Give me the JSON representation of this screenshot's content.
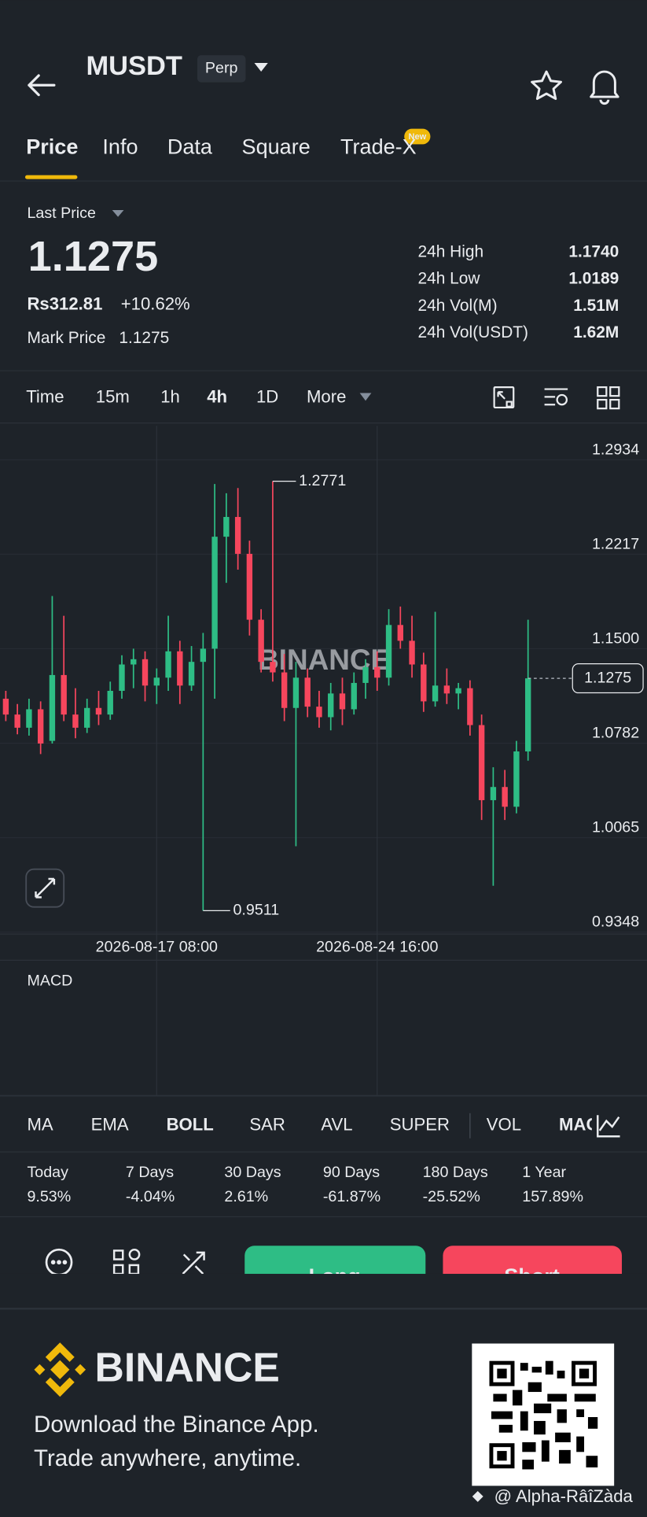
{
  "header": {
    "symbol": "MUSDT",
    "badge": "Perp"
  },
  "tabs": [
    "Price",
    "Info",
    "Data",
    "Square",
    "Trade-X"
  ],
  "tab_badge": "New",
  "price": {
    "label": "Last Price",
    "last": "1.1275",
    "fiat": "Rs312.81",
    "change": "+10.62%",
    "mark_label": "Mark Price",
    "mark_value": "1.1275"
  },
  "stats": [
    {
      "label": "24h High",
      "value": "1.1740"
    },
    {
      "label": "24h Low",
      "value": "1.0189"
    },
    {
      "label": "24h Vol(M)",
      "value": "1.51M"
    },
    {
      "label": "24h Vol(USDT)",
      "value": "1.62M"
    }
  ],
  "timeframes": [
    "Time",
    "15m",
    "1h",
    "4h",
    "1D",
    "More"
  ],
  "chart_data": {
    "type": "candlestick",
    "watermark": "BINANCE",
    "categories": [
      null,
      null,
      null,
      null,
      null,
      null,
      null,
      null,
      null,
      null,
      null,
      null,
      null,
      "2026-08-17 08:00",
      null,
      null,
      null,
      null,
      null,
      null,
      null,
      null,
      null,
      null,
      null,
      null,
      null,
      null,
      null,
      null,
      null,
      null,
      "2026-08-24 16:00",
      null,
      null,
      null,
      null,
      null,
      null,
      null,
      null,
      null,
      null,
      null,
      null,
      null
    ],
    "open": [
      1.112,
      1.1,
      1.09,
      1.104,
      1.08,
      1.13,
      1.1,
      1.09,
      1.105,
      1.1,
      1.118,
      1.138,
      1.142,
      1.122,
      1.128,
      1.148,
      1.122,
      1.14,
      1.15,
      1.235,
      1.25,
      1.222,
      1.172,
      1.14,
      1.132,
      1.105,
      1.128,
      1.106,
      1.098,
      1.116,
      1.104,
      1.124,
      1.136,
      1.128,
      1.168,
      1.156,
      1.138,
      1.11,
      1.122,
      1.116,
      1.12,
      1.092,
      1.035,
      1.045,
      1.03,
      1.072
    ],
    "high": [
      1.118,
      1.108,
      1.112,
      1.11,
      1.19,
      1.175,
      1.12,
      1.112,
      1.118,
      1.125,
      1.145,
      1.15,
      1.148,
      1.135,
      1.175,
      1.156,
      1.152,
      1.162,
      1.275,
      1.268,
      1.272,
      1.232,
      1.18,
      1.2771,
      1.146,
      1.14,
      1.135,
      1.118,
      1.124,
      1.128,
      1.132,
      1.142,
      1.148,
      1.18,
      1.182,
      1.175,
      1.147,
      1.178,
      1.135,
      1.124,
      1.126,
      1.1,
      1.06,
      1.058,
      1.08,
      1.172
    ],
    "low": [
      1.095,
      1.085,
      1.084,
      1.07,
      1.078,
      1.095,
      1.082,
      1.086,
      1.092,
      1.096,
      1.112,
      1.12,
      1.11,
      1.108,
      1.118,
      1.108,
      1.118,
      0.9511,
      1.112,
      1.2,
      1.21,
      1.16,
      1.132,
      1.125,
      1.095,
      1.0,
      1.098,
      1.09,
      1.088,
      1.092,
      1.1,
      1.112,
      1.118,
      1.122,
      1.15,
      1.128,
      1.102,
      1.106,
      1.108,
      1.104,
      1.084,
      1.02,
      0.97,
      1.02,
      1.025,
      1.065
    ],
    "close": [
      1.1,
      1.09,
      1.104,
      1.078,
      1.13,
      1.1,
      1.09,
      1.105,
      1.1,
      1.118,
      1.138,
      1.142,
      1.122,
      1.128,
      1.148,
      1.122,
      1.14,
      1.15,
      1.235,
      1.25,
      1.222,
      1.172,
      1.14,
      1.132,
      1.105,
      1.128,
      1.106,
      1.098,
      1.116,
      1.104,
      1.124,
      1.136,
      1.128,
      1.168,
      1.156,
      1.138,
      1.11,
      1.122,
      1.116,
      1.12,
      1.092,
      1.035,
      1.045,
      1.03,
      1.072,
      1.1275
    ],
    "up_color": "#2ebd85",
    "down_color": "#f6465d",
    "ylim": [
      0.9348,
      1.2934
    ],
    "yticks": [
      1.2934,
      1.2217,
      {
        "value": 1.15,
        "label": "1.1500"
      },
      1.0782,
      1.0065,
      0.9348
    ],
    "high_label": 1.2771,
    "low_label": 0.9511,
    "last_price": 1.1275,
    "grid": true
  },
  "indicator_label": "MACD",
  "indicators": [
    "MA",
    "EMA",
    "BOLL",
    "SAR",
    "AVL",
    "SUPER",
    "VOL",
    "MACD"
  ],
  "returns": [
    {
      "period": "Today",
      "value": "9.53%"
    },
    {
      "period": "7 Days",
      "value": "-4.04%"
    },
    {
      "period": "30 Days",
      "value": "2.61%"
    },
    {
      "period": "90 Days",
      "value": "-61.87%"
    },
    {
      "period": "180 Days",
      "value": "-25.52%"
    },
    {
      "period": "1 Year",
      "value": "157.89%"
    }
  ],
  "actions": {
    "long": "Long",
    "short": "Short"
  },
  "footer": {
    "brand": "BINANCE",
    "line1": "Download the Binance App.",
    "line2": "Trade anywhere, anytime.",
    "credit": "@ Alpha-RâîZàda"
  }
}
